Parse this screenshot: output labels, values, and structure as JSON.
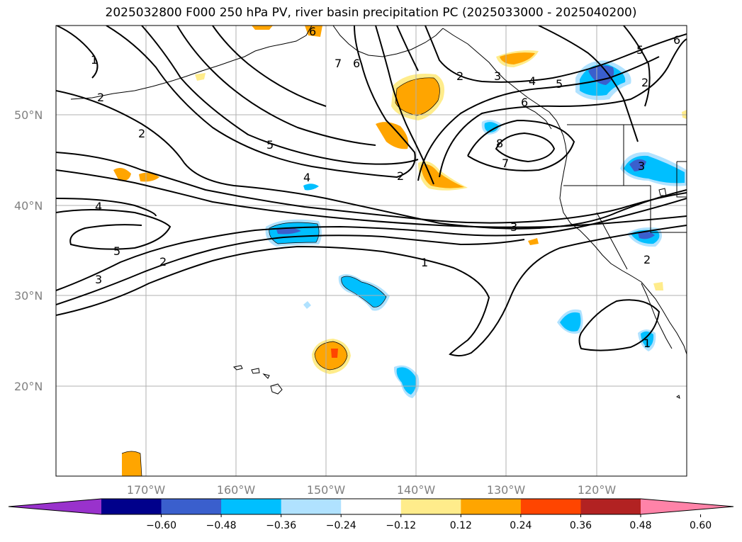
{
  "title": "2025032800 F000 250 hPa PV, river basin precipitation PC (2025033000 - 2025040200)",
  "map": {
    "lat_labels": [
      "50°N",
      "40°N",
      "30°N",
      "20°N"
    ],
    "lon_labels": [
      "170°W",
      "160°W",
      "150°W",
      "140°W",
      "130°W",
      "120°W"
    ],
    "pv_contour_labels": [
      "1",
      "2",
      "2",
      "2",
      "2",
      "3",
      "4",
      "4",
      "5",
      "5",
      "6",
      "7",
      "6",
      "2",
      "3",
      "4",
      "5",
      "6",
      "8",
      "7",
      "3",
      "1",
      "2",
      "3",
      "5",
      "6",
      "2",
      "1"
    ]
  },
  "colorbar": {
    "ticks": [
      "−0.60",
      "−0.48",
      "−0.36",
      "−0.24",
      "−0.12",
      "0.12",
      "0.24",
      "0.36",
      "0.48",
      "0.60"
    ],
    "colors": [
      "#9932cc",
      "#00008b",
      "#3a5fcd",
      "#00bfff",
      "#b0e2ff",
      "#ffffff",
      "#ffec8b",
      "#ffa500",
      "#ff4500",
      "#b22222",
      "#ff83a8"
    ],
    "extend": "both"
  }
}
